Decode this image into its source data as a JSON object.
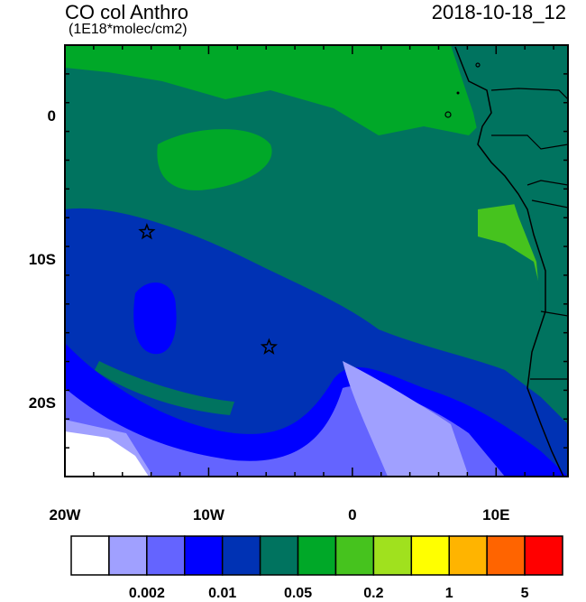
{
  "header": {
    "title": "CO col Anthro",
    "units": "(1E18*molec/cm2)",
    "datetime": "2018-10-18_12"
  },
  "map": {
    "lat_range": [
      -25,
      5
    ],
    "lon_range": [
      -20,
      15
    ],
    "lat_ticks": [
      {
        "value": 0,
        "label": "0"
      },
      {
        "value": -10,
        "label": "10S"
      },
      {
        "value": -20,
        "label": "20S"
      }
    ],
    "lon_ticks": [
      {
        "value": -20,
        "label": "20W"
      },
      {
        "value": -10,
        "label": "10W"
      },
      {
        "value": 0,
        "label": "0"
      },
      {
        "value": 10,
        "label": "10E"
      }
    ],
    "markers": [
      {
        "name": "star-marker-north",
        "lon": -14.3,
        "lat": -8.0
      },
      {
        "name": "star-marker-south",
        "lon": -5.8,
        "lat": -16.0
      }
    ]
  },
  "colorbar": {
    "colors": [
      "#ffffff",
      "#a0a0ff",
      "#6464ff",
      "#0000ff",
      "#0032b4",
      "#00735f",
      "#00a828",
      "#46c31e",
      "#a0e11e",
      "#ffff00",
      "#ffb400",
      "#ff6400",
      "#ff0000"
    ],
    "labels": [
      {
        "index": 2,
        "text": "0.002"
      },
      {
        "index": 4,
        "text": "0.01"
      },
      {
        "index": 6,
        "text": "0.05"
      },
      {
        "index": 8,
        "text": "0.2"
      },
      {
        "index": 10,
        "text": "1"
      },
      {
        "index": 12,
        "text": "5"
      }
    ]
  }
}
